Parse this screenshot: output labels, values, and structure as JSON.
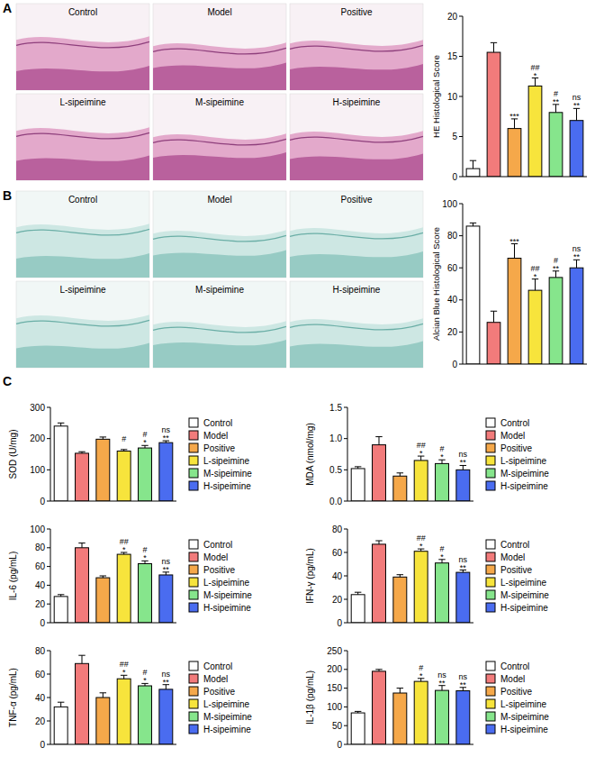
{
  "figure": {
    "panel_labels": [
      "A",
      "B",
      "C"
    ],
    "micrographs": [
      {
        "labels": [
          "Control",
          "Model",
          "Positive",
          "L-sipeimine",
          "M-sipeimine",
          "H-sipeimine"
        ]
      },
      {
        "labels": [
          "Control",
          "Model",
          "Positive",
          "L-sipeimine",
          "M-sipeimine",
          "H-sipeimine"
        ]
      }
    ]
  },
  "chart_data": [
    {
      "type": "bar",
      "ylabel": "HE Histological Score",
      "categories": [
        null,
        null,
        null,
        null,
        null,
        null
      ],
      "values": [
        1,
        15.5,
        6,
        11.3,
        8,
        7
      ],
      "errors": [
        1,
        1.2,
        1.2,
        1,
        1,
        1.5
      ],
      "colors": [
        "#ffffff",
        "#f27b7b",
        "#f5a84a",
        "#f7e43c",
        "#86e58c",
        "#4a6cf0"
      ],
      "sig_model": [
        null,
        null,
        "***",
        "*",
        "**",
        "**"
      ],
      "sig_positive": [
        null,
        null,
        null,
        "##",
        "#",
        "ns"
      ],
      "ylim": [
        0,
        20
      ],
      "yticks": [
        0,
        5,
        10,
        15,
        20
      ]
    },
    {
      "type": "bar",
      "ylabel": "Alcian Blue Histological Score",
      "categories": [
        null,
        null,
        null,
        null,
        null,
        null
      ],
      "values": [
        86,
        26,
        66,
        46,
        54,
        60
      ],
      "errors": [
        2,
        7,
        9,
        7,
        4,
        5
      ],
      "colors": [
        "#ffffff",
        "#f27b7b",
        "#f5a84a",
        "#f7e43c",
        "#86e58c",
        "#4a6cf0"
      ],
      "sig_model": [
        null,
        null,
        "***",
        "*",
        "**",
        "**"
      ],
      "sig_positive": [
        null,
        null,
        null,
        "##",
        "#",
        "ns"
      ],
      "ylim": [
        0,
        100
      ],
      "yticks": [
        0,
        20,
        40,
        60,
        80,
        100
      ]
    },
    {
      "type": "bar",
      "ylabel": "SOD (U/mg)",
      "categories": [
        null
      ],
      "legend": "right",
      "ylim": [
        0,
        300
      ],
      "yticks": [
        0,
        100,
        200,
        300
      ],
      "series": [
        {
          "name": "Control",
          "color": "#ffffff",
          "values": [
            240
          ],
          "errors": [
            10
          ],
          "sig_model": [
            null
          ],
          "sig_positive": [
            null
          ]
        },
        {
          "name": "Model",
          "color": "#f27b7b",
          "values": [
            153
          ],
          "errors": [
            5
          ],
          "sig_model": [
            null
          ],
          "sig_positive": [
            null
          ]
        },
        {
          "name": "Positive",
          "color": "#f5a84a",
          "values": [
            198
          ],
          "errors": [
            7
          ],
          "sig_model": [
            null
          ],
          "sig_positive": [
            null
          ]
        },
        {
          "name": "L-sipeimine",
          "color": "#f7e43c",
          "values": [
            160
          ],
          "errors": [
            5
          ],
          "sig_model": [
            null
          ],
          "sig_positive": [
            "#"
          ]
        },
        {
          "name": "M-sipeimine",
          "color": "#86e58c",
          "values": [
            170
          ],
          "errors": [
            8
          ],
          "sig_model": [
            "*"
          ],
          "sig_positive": [
            "#"
          ]
        },
        {
          "name": "H-sipeimine",
          "color": "#4a6cf0",
          "values": [
            187
          ],
          "errors": [
            6
          ],
          "sig_model": [
            "**"
          ],
          "sig_positive": [
            "ns"
          ]
        }
      ]
    },
    {
      "type": "bar",
      "ylabel": "MDA (nmol/mg)",
      "categories": [
        null
      ],
      "legend": "right",
      "ylim": [
        0,
        1.5
      ],
      "yticks": [
        {
          "value": 0,
          "label": "0.0"
        },
        0.5,
        {
          "value": 1,
          "label": "1.0"
        },
        1.5
      ],
      "series": [
        {
          "name": "Control",
          "color": "#ffffff",
          "values": [
            0.52
          ],
          "errors": [
            0.03
          ],
          "sig_model": [
            null
          ],
          "sig_positive": [
            null
          ]
        },
        {
          "name": "Model",
          "color": "#f27b7b",
          "values": [
            0.9
          ],
          "errors": [
            0.13
          ],
          "sig_model": [
            null
          ],
          "sig_positive": [
            null
          ]
        },
        {
          "name": "Positive",
          "color": "#f5a84a",
          "values": [
            0.4
          ],
          "errors": [
            0.05
          ],
          "sig_model": [
            null
          ],
          "sig_positive": [
            null
          ]
        },
        {
          "name": "L-sipeimine",
          "color": "#f7e43c",
          "values": [
            0.65
          ],
          "errors": [
            0.07
          ],
          "sig_model": [
            "*"
          ],
          "sig_positive": [
            "##"
          ]
        },
        {
          "name": "M-sipeimine",
          "color": "#86e58c",
          "values": [
            0.6
          ],
          "errors": [
            0.06
          ],
          "sig_model": [
            "*"
          ],
          "sig_positive": [
            "#"
          ]
        },
        {
          "name": "H-sipeimine",
          "color": "#4a6cf0",
          "values": [
            0.5
          ],
          "errors": [
            0.07
          ],
          "sig_model": [
            "**"
          ],
          "sig_positive": [
            "ns"
          ]
        }
      ]
    },
    {
      "type": "bar",
      "ylabel": "IL-6 (pg/mL)",
      "categories": [
        null
      ],
      "legend": "right",
      "ylim": [
        0,
        100
      ],
      "yticks": [
        0,
        20,
        40,
        60,
        80,
        100
      ],
      "series": [
        {
          "name": "Control",
          "color": "#ffffff",
          "values": [
            28
          ],
          "errors": [
            2
          ],
          "sig_model": [
            null
          ],
          "sig_positive": [
            null
          ]
        },
        {
          "name": "Model",
          "color": "#f27b7b",
          "values": [
            80
          ],
          "errors": [
            5
          ],
          "sig_model": [
            null
          ],
          "sig_positive": [
            null
          ]
        },
        {
          "name": "Positive",
          "color": "#f5a84a",
          "values": [
            48
          ],
          "errors": [
            2
          ],
          "sig_model": [
            null
          ],
          "sig_positive": [
            null
          ]
        },
        {
          "name": "L-sipeimine",
          "color": "#f7e43c",
          "values": [
            73
          ],
          "errors": [
            2
          ],
          "sig_model": [
            "*"
          ],
          "sig_positive": [
            "##"
          ]
        },
        {
          "name": "M-sipeimine",
          "color": "#86e58c",
          "values": [
            63
          ],
          "errors": [
            3
          ],
          "sig_model": [
            "*"
          ],
          "sig_positive": [
            "#"
          ]
        },
        {
          "name": "H-sipeimine",
          "color": "#4a6cf0",
          "values": [
            51
          ],
          "errors": [
            3
          ],
          "sig_model": [
            "**"
          ],
          "sig_positive": [
            "ns"
          ]
        }
      ]
    },
    {
      "type": "bar",
      "ylabel": "IFN-γ (pg/mL)",
      "categories": [
        null
      ],
      "legend": "right",
      "ylim": [
        0,
        80
      ],
      "yticks": [
        0,
        20,
        40,
        60,
        80
      ],
      "series": [
        {
          "name": "Control",
          "color": "#ffffff",
          "values": [
            24
          ],
          "errors": [
            2
          ],
          "sig_model": [
            null
          ],
          "sig_positive": [
            null
          ]
        },
        {
          "name": "Model",
          "color": "#f27b7b",
          "values": [
            67
          ],
          "errors": [
            3
          ],
          "sig_model": [
            null
          ],
          "sig_positive": [
            null
          ]
        },
        {
          "name": "Positive",
          "color": "#f5a84a",
          "values": [
            39
          ],
          "errors": [
            2
          ],
          "sig_model": [
            null
          ],
          "sig_positive": [
            null
          ]
        },
        {
          "name": "L-sipeimine",
          "color": "#f7e43c",
          "values": [
            61
          ],
          "errors": [
            2
          ],
          "sig_model": [
            "*"
          ],
          "sig_positive": [
            "##"
          ]
        },
        {
          "name": "M-sipeimine",
          "color": "#86e58c",
          "values": [
            51
          ],
          "errors": [
            3
          ],
          "sig_model": [
            "*"
          ],
          "sig_positive": [
            "#"
          ]
        },
        {
          "name": "H-sipeimine",
          "color": "#4a6cf0",
          "values": [
            43
          ],
          "errors": [
            2
          ],
          "sig_model": [
            "**"
          ],
          "sig_positive": [
            "ns"
          ]
        }
      ]
    },
    {
      "type": "bar",
      "ylabel": "TNF-α (pg/mL)",
      "categories": [
        null
      ],
      "legend": "right",
      "ylim": [
        0,
        80
      ],
      "yticks": [
        0,
        20,
        40,
        60,
        80
      ],
      "series": [
        {
          "name": "Control",
          "color": "#ffffff",
          "values": [
            32
          ],
          "errors": [
            4
          ],
          "sig_model": [
            null
          ],
          "sig_positive": [
            null
          ]
        },
        {
          "name": "Model",
          "color": "#f27b7b",
          "values": [
            69
          ],
          "errors": [
            7
          ],
          "sig_model": [
            null
          ],
          "sig_positive": [
            null
          ]
        },
        {
          "name": "Positive",
          "color": "#f5a84a",
          "values": [
            40
          ],
          "errors": [
            4
          ],
          "sig_model": [
            null
          ],
          "sig_positive": [
            null
          ]
        },
        {
          "name": "L-sipeimine",
          "color": "#f7e43c",
          "values": [
            56
          ],
          "errors": [
            3
          ],
          "sig_model": [
            "*"
          ],
          "sig_positive": [
            "##"
          ]
        },
        {
          "name": "M-sipeimine",
          "color": "#86e58c",
          "values": [
            50
          ],
          "errors": [
            2
          ],
          "sig_model": [
            "*"
          ],
          "sig_positive": [
            "#"
          ]
        },
        {
          "name": "H-sipeimine",
          "color": "#4a6cf0",
          "values": [
            47
          ],
          "errors": [
            4
          ],
          "sig_model": [
            "**"
          ],
          "sig_positive": [
            "ns"
          ]
        }
      ]
    },
    {
      "type": "bar",
      "ylabel": "IL-1β (pg/mL)",
      "categories": [
        null
      ],
      "legend": "right",
      "ylim": [
        0,
        250
      ],
      "yticks": [
        0,
        50,
        100,
        150,
        200,
        250
      ],
      "series": [
        {
          "name": "Control",
          "color": "#ffffff",
          "values": [
            84
          ],
          "errors": [
            4
          ],
          "sig_model": [
            null
          ],
          "sig_positive": [
            null
          ]
        },
        {
          "name": "Model",
          "color": "#f27b7b",
          "values": [
            195
          ],
          "errors": [
            5
          ],
          "sig_model": [
            null
          ],
          "sig_positive": [
            null
          ]
        },
        {
          "name": "Positive",
          "color": "#f5a84a",
          "values": [
            137
          ],
          "errors": [
            13
          ],
          "sig_model": [
            null
          ],
          "sig_positive": [
            null
          ]
        },
        {
          "name": "L-sipeimine",
          "color": "#f7e43c",
          "values": [
            168
          ],
          "errors": [
            8
          ],
          "sig_model": [
            "*"
          ],
          "sig_positive": [
            "#"
          ]
        },
        {
          "name": "M-sipeimine",
          "color": "#86e58c",
          "values": [
            144
          ],
          "errors": [
            13
          ],
          "sig_model": [
            "**"
          ],
          "sig_positive": [
            "ns"
          ]
        },
        {
          "name": "H-sipeimine",
          "color": "#4a6cf0",
          "values": [
            143
          ],
          "errors": [
            9
          ],
          "sig_model": [
            "**"
          ],
          "sig_positive": [
            "ns"
          ]
        }
      ]
    }
  ]
}
